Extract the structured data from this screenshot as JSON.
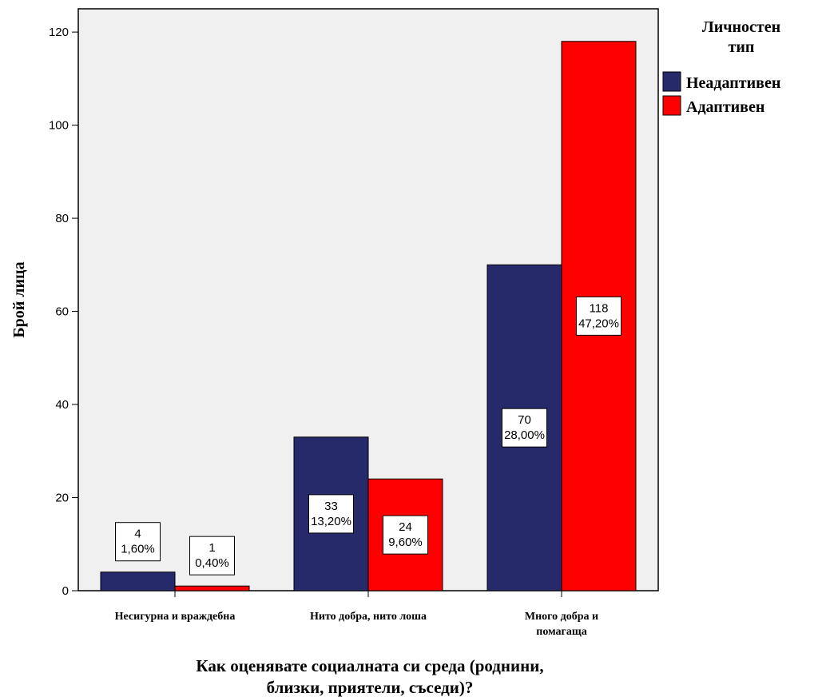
{
  "chart_data": {
    "type": "bar",
    "xlabel": "Как оценявате социалната си среда (роднини, близки, приятели, съседи)?",
    "xlabel_lines": [
      "Как оценявате социалната си среда (роднини,",
      "близки, приятели, съседи)?"
    ],
    "ylabel": "Брой лица",
    "ylim": [
      0,
      125
    ],
    "yticks": [
      "0",
      "20",
      "40",
      "60",
      "80",
      "100",
      "120"
    ],
    "grid": false,
    "legend_position": "right",
    "legend_title_lines": [
      "Личностен",
      "тип"
    ],
    "categories": [
      "Несигурна и враждебна",
      "Нито добра, нито лоша",
      "Много добра и помагаща"
    ],
    "category_label_lines": [
      [
        "Несигурна и враждебна"
      ],
      [
        "Нито добра, нито лоша"
      ],
      [
        "Много добра и",
        "помагаща"
      ]
    ],
    "series": [
      {
        "name": "Неадаптивен",
        "color": "#262a6b",
        "values": [
          4,
          33,
          70
        ],
        "labels": [
          "4",
          "33",
          "70"
        ],
        "percents": [
          "1,60%",
          "13,20%",
          "28,00%"
        ]
      },
      {
        "name": "Адаптивен",
        "color": "#ff0000",
        "values": [
          1,
          24,
          118
        ],
        "labels": [
          "1",
          "24",
          "118"
        ],
        "percents": [
          "0,40%",
          "9,60%",
          "47,20%"
        ]
      }
    ]
  }
}
